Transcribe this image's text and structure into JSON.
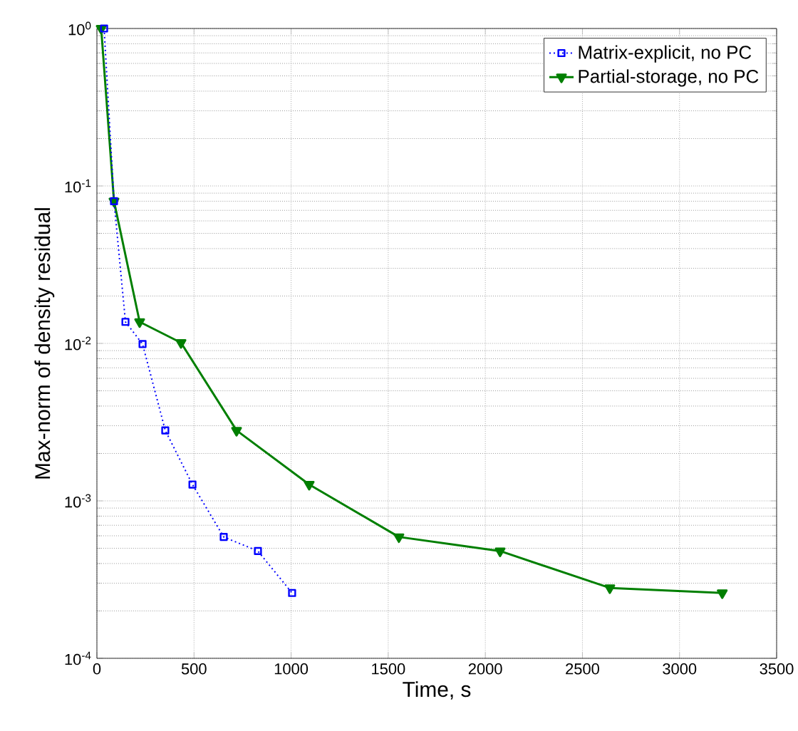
{
  "chart_data": {
    "type": "line",
    "xlabel": "Time, s",
    "ylabel": "Max-norm of density residual",
    "xlim": [
      0,
      3500
    ],
    "xticks": [
      0,
      500,
      1000,
      1500,
      2000,
      2500,
      3000,
      3500
    ],
    "ylim": [
      0.0001,
      1
    ],
    "yticks": [
      {
        "value": 0.0001,
        "label": "10$^{-4}$"
      },
      {
        "value": 0.001,
        "label": "10$^{-3}$"
      },
      {
        "value": 0.01,
        "label": "10$^{-2}$"
      },
      {
        "value": 0.1,
        "label": "10$^{-1}$"
      },
      {
        "value": 1,
        "label": "10$^{0}$"
      }
    ],
    "log": "y",
    "grid": true,
    "legend": "top right",
    "series": [
      {
        "name": "Matrix-explicit, no PC",
        "color": "#0000ff",
        "marker": "square",
        "line_style": "dotted",
        "x": [
          37,
          88,
          147,
          235,
          352,
          492,
          653,
          829,
          1005
        ],
        "values": [
          1,
          0.08,
          0.0137,
          0.0099,
          0.0028,
          0.00127,
          0.00059,
          0.00048,
          0.00026
        ]
      },
      {
        "name": "Partial-storage, no PC",
        "color": "#007f00",
        "marker": "triangle",
        "line_style": "solid",
        "x": [
          22,
          88,
          220,
          433,
          719,
          1093,
          1555,
          2076,
          2641,
          3220
        ],
        "values": [
          1,
          0.08,
          0.0137,
          0.0101,
          0.0028,
          0.00127,
          0.00059,
          0.00048,
          0.00028,
          0.00026
        ]
      }
    ]
  }
}
